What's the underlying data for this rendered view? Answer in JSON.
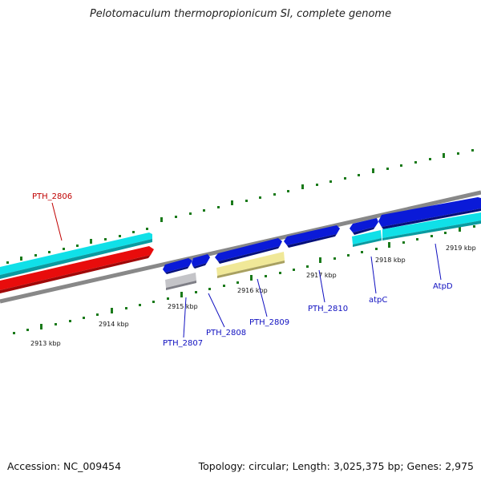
{
  "title": "Pelotomaculum thermopropionicum SI, complete genome",
  "footer": {
    "accession": "Accession: NC_009454",
    "summary": "Topology: circular; Length: 3,025,375 bp; Genes: 2,975"
  },
  "colors": {
    "forward_cds": "#0a1ad8",
    "reverse_cds": "#10e0e8",
    "highlight": "#e80c0c",
    "hypothetical": "#f0e898",
    "pseudo": "#c4c4c8",
    "backbone": "#888888",
    "ticks": "#1a7a1a",
    "label_blue": "#1010c0",
    "label_red": "#c00000"
  },
  "scale": {
    "ticks": [
      {
        "label": "2913 kbp"
      },
      {
        "label": "2914 kbp"
      },
      {
        "label": "2915 kbp"
      },
      {
        "label": "2916 kbp"
      },
      {
        "label": "2917 kbp"
      },
      {
        "label": "2918 kbp"
      },
      {
        "label": "2919 kbp"
      }
    ]
  },
  "genes": [
    {
      "label": "PTH_2806"
    },
    {
      "label": "PTH_2807"
    },
    {
      "label": "PTH_2808"
    },
    {
      "label": "PTH_2809"
    },
    {
      "label": "PTH_2810"
    },
    {
      "label": "atpC"
    },
    {
      "label": "AtpD"
    }
  ]
}
